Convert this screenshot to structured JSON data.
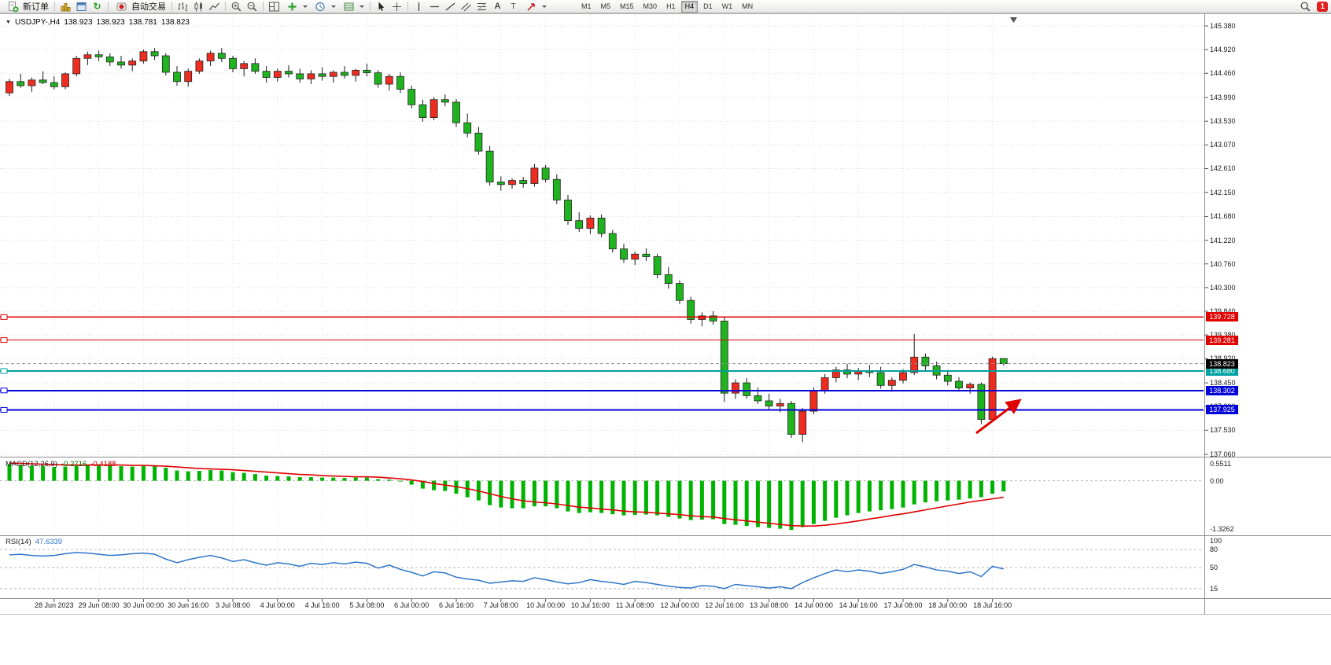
{
  "toolbar": {
    "new_order": "新订单",
    "autotrading": "自动交易",
    "timeframes": [
      "M1",
      "M5",
      "M15",
      "M30",
      "H1",
      "H4",
      "D1",
      "W1",
      "MN"
    ],
    "selected_timeframe": "H4",
    "notification_count": "1"
  },
  "title": {
    "symbol": "USDJPY-,H4",
    "open": "138.923",
    "high": "138.923",
    "low": "138.781",
    "close": "138.823"
  },
  "price_scale": [
    "145.380",
    "144.920",
    "144.460",
    "143.990",
    "143.530",
    "143.070",
    "142.610",
    "142.150",
    "141.680",
    "141.220",
    "140.760",
    "140.300",
    "139.840",
    "139.380",
    "138.920",
    "138.450",
    "137.990",
    "137.530",
    "137.060"
  ],
  "hlines": [
    {
      "label": "139.728",
      "price": 139.728,
      "color": "#e00000",
      "width": 1.2
    },
    {
      "label": "139.281",
      "price": 139.281,
      "color": "#e00000",
      "width": 1.2
    },
    {
      "label": "138.680",
      "price": 138.68,
      "color": "#00a0a0",
      "width": 2
    },
    {
      "label": "138.302",
      "price": 138.302,
      "color": "#0000d8",
      "width": 2
    },
    {
      "label": "137.925",
      "price": 137.925,
      "color": "#0000d8",
      "width": 2
    }
  ],
  "current_price": {
    "label": "138.823",
    "price": 138.823,
    "box_color": "#000000"
  },
  "macd_panel": {
    "name": "MACD(12,26,9)",
    "value": "-0.2716",
    "signal_value": "-0.4188",
    "scale": [
      "0.5511",
      "0.00",
      "-1.3262"
    ]
  },
  "rsi_panel": {
    "name": "RSI(14)",
    "value": "47.6339",
    "scale": [
      "100",
      "80",
      "50",
      "15"
    ],
    "levels": [
      80,
      50,
      15
    ]
  },
  "dates": [
    "28 Jun 2023",
    "29 Jun 08:00",
    "30 Jun 00:00",
    "30 Jun 16:00",
    "3 Jul 08:00",
    "4 Jul 00:00",
    "4 Jul 16:00",
    "5 Jul 08:00",
    "6 Jul 00:00",
    "6 Jul 16:00",
    "7 Jul 08:00",
    "10 Jul 00:00",
    "10 Jul 16:00",
    "11 Jul 08:00",
    "12 Jul 00:00",
    "12 Jul 16:00",
    "13 Jul 08:00",
    "14 Jul 00:00",
    "14 Jul 16:00",
    "17 Jul 08:00",
    "18 Jul 00:00",
    "18 Jul 16:00"
  ],
  "colors": {
    "up": "#ee2d20",
    "up_border": "#222222",
    "down": "#1fb41f",
    "down_border": "#222222",
    "wick": "#1a1a1a",
    "macd": "#00b300",
    "signal": "#e00000",
    "rsi": "#2e75c8",
    "grid": "#d8d8d8",
    "arrow": "#e00000"
  },
  "chart_data": {
    "type": "candlestick",
    "title": "USDJPY-,H4",
    "timeframe": "H4",
    "ylim": [
      137.06,
      145.38
    ],
    "candles": [
      [
        144.08,
        144.35,
        144.02,
        144.3
      ],
      [
        144.3,
        144.45,
        144.18,
        144.22
      ],
      [
        144.22,
        144.38,
        144.1,
        144.33
      ],
      [
        144.33,
        144.5,
        144.25,
        144.28
      ],
      [
        144.28,
        144.4,
        144.15,
        144.2
      ],
      [
        144.2,
        144.48,
        144.15,
        144.45
      ],
      [
        144.45,
        144.8,
        144.4,
        144.75
      ],
      [
        144.75,
        144.88,
        144.62,
        144.82
      ],
      [
        144.82,
        144.9,
        144.7,
        144.78
      ],
      [
        144.78,
        144.85,
        144.6,
        144.68
      ],
      [
        144.68,
        144.8,
        144.55,
        144.62
      ],
      [
        144.62,
        144.75,
        144.5,
        144.7
      ],
      [
        144.7,
        144.92,
        144.65,
        144.88
      ],
      [
        144.88,
        144.95,
        144.72,
        144.8
      ],
      [
        144.8,
        144.85,
        144.42,
        144.48
      ],
      [
        144.48,
        144.6,
        144.22,
        144.3
      ],
      [
        144.3,
        144.55,
        144.2,
        144.5
      ],
      [
        144.5,
        144.75,
        144.45,
        144.7
      ],
      [
        144.7,
        144.9,
        144.6,
        144.85
      ],
      [
        144.85,
        144.95,
        144.68,
        144.75
      ],
      [
        144.75,
        144.8,
        144.48,
        144.55
      ],
      [
        144.55,
        144.7,
        144.4,
        144.65
      ],
      [
        144.65,
        144.75,
        144.45,
        144.5
      ],
      [
        144.5,
        144.6,
        144.28,
        144.38
      ],
      [
        144.38,
        144.55,
        144.3,
        144.5
      ],
      [
        144.5,
        144.62,
        144.38,
        144.45
      ],
      [
        144.45,
        144.55,
        144.28,
        144.35
      ],
      [
        144.35,
        144.52,
        144.25,
        144.45
      ],
      [
        144.45,
        144.58,
        144.32,
        144.4
      ],
      [
        144.4,
        144.52,
        144.28,
        144.48
      ],
      [
        144.48,
        144.6,
        144.36,
        144.42
      ],
      [
        144.42,
        144.55,
        144.3,
        144.52
      ],
      [
        144.52,
        144.65,
        144.4,
        144.47
      ],
      [
        144.47,
        144.52,
        144.18,
        144.25
      ],
      [
        144.25,
        144.45,
        144.12,
        144.4
      ],
      [
        144.4,
        144.48,
        144.08,
        144.15
      ],
      [
        144.15,
        144.22,
        143.78,
        143.85
      ],
      [
        143.85,
        143.95,
        143.52,
        143.6
      ],
      [
        143.6,
        144.0,
        143.55,
        143.95
      ],
      [
        143.95,
        144.05,
        143.82,
        143.9
      ],
      [
        143.9,
        143.96,
        143.42,
        143.5
      ],
      [
        143.5,
        143.68,
        143.22,
        143.3
      ],
      [
        143.3,
        143.42,
        142.88,
        142.95
      ],
      [
        142.95,
        143.05,
        142.28,
        142.35
      ],
      [
        142.35,
        142.46,
        142.18,
        142.3
      ],
      [
        142.3,
        142.42,
        142.22,
        142.38
      ],
      [
        142.38,
        142.45,
        142.24,
        142.32
      ],
      [
        142.32,
        142.7,
        142.26,
        142.62
      ],
      [
        142.62,
        142.68,
        142.34,
        142.4
      ],
      [
        142.4,
        142.5,
        141.92,
        142.0
      ],
      [
        142.0,
        142.1,
        141.52,
        141.6
      ],
      [
        141.6,
        141.76,
        141.38,
        141.45
      ],
      [
        141.45,
        141.7,
        141.34,
        141.65
      ],
      [
        141.65,
        141.72,
        141.28,
        141.35
      ],
      [
        141.35,
        141.42,
        140.98,
        141.05
      ],
      [
        141.05,
        141.15,
        140.78,
        140.85
      ],
      [
        140.85,
        141.0,
        140.74,
        140.95
      ],
      [
        140.95,
        141.06,
        140.82,
        140.9
      ],
      [
        140.9,
        140.96,
        140.48,
        140.55
      ],
      [
        140.55,
        140.7,
        140.28,
        140.38
      ],
      [
        140.38,
        140.44,
        139.98,
        140.05
      ],
      [
        140.05,
        140.12,
        139.6,
        139.68
      ],
      [
        139.68,
        139.82,
        139.55,
        139.75
      ],
      [
        139.75,
        139.84,
        139.58,
        139.65
      ],
      [
        139.65,
        139.72,
        138.08,
        138.25
      ],
      [
        138.25,
        138.52,
        138.14,
        138.45
      ],
      [
        138.45,
        138.54,
        138.14,
        138.2
      ],
      [
        138.2,
        138.36,
        138.04,
        138.1
      ],
      [
        138.1,
        138.24,
        137.94,
        138.0
      ],
      [
        138.0,
        138.14,
        137.88,
        138.05
      ],
      [
        138.05,
        138.1,
        137.38,
        137.45
      ],
      [
        137.45,
        137.96,
        137.3,
        137.9
      ],
      [
        137.9,
        138.36,
        137.84,
        138.3
      ],
      [
        138.3,
        138.62,
        138.24,
        138.55
      ],
      [
        138.55,
        138.76,
        138.46,
        138.7
      ],
      [
        138.7,
        138.82,
        138.54,
        138.62
      ],
      [
        138.62,
        138.74,
        138.5,
        138.68
      ],
      [
        138.68,
        138.8,
        138.56,
        138.65
      ],
      [
        138.65,
        138.76,
        138.34,
        138.4
      ],
      [
        138.4,
        138.56,
        138.28,
        138.5
      ],
      [
        138.5,
        138.72,
        138.44,
        138.65
      ],
      [
        138.65,
        139.4,
        138.6,
        138.95
      ],
      [
        138.95,
        139.02,
        138.68,
        138.78
      ],
      [
        138.78,
        138.86,
        138.52,
        138.6
      ],
      [
        138.6,
        138.7,
        138.4,
        138.48
      ],
      [
        138.48,
        138.56,
        138.28,
        138.35
      ],
      [
        138.35,
        138.46,
        138.24,
        138.42
      ],
      [
        138.42,
        138.46,
        137.65,
        137.74
      ],
      [
        137.74,
        138.96,
        137.7,
        138.92
      ],
      [
        138.923,
        138.923,
        138.781,
        138.823
      ]
    ],
    "macd_hist": [
      0.42,
      0.4,
      0.38,
      0.37,
      0.35,
      0.36,
      0.38,
      0.4,
      0.41,
      0.39,
      0.37,
      0.36,
      0.37,
      0.38,
      0.33,
      0.26,
      0.24,
      0.25,
      0.27,
      0.26,
      0.22,
      0.2,
      0.17,
      0.13,
      0.12,
      0.11,
      0.09,
      0.09,
      0.08,
      0.08,
      0.07,
      0.08,
      0.08,
      0.04,
      0.03,
      -0.02,
      -0.1,
      -0.2,
      -0.24,
      -0.26,
      -0.33,
      -0.42,
      -0.5,
      -0.62,
      -0.68,
      -0.7,
      -0.7,
      -0.65,
      -0.65,
      -0.7,
      -0.78,
      -0.82,
      -0.8,
      -0.82,
      -0.85,
      -0.88,
      -0.87,
      -0.86,
      -0.88,
      -0.92,
      -0.96,
      -1.0,
      -0.99,
      -0.98,
      -1.1,
      -1.12,
      -1.15,
      -1.18,
      -1.2,
      -1.22,
      -1.25,
      -1.18,
      -1.1,
      -1.02,
      -0.94,
      -0.88,
      -0.82,
      -0.78,
      -0.75,
      -0.72,
      -0.68,
      -0.6,
      -0.55,
      -0.52,
      -0.5,
      -0.48,
      -0.45,
      -0.42,
      -0.33,
      -0.2716
    ],
    "macd_signal": [
      0.45,
      0.44,
      0.43,
      0.42,
      0.41,
      0.4,
      0.4,
      0.4,
      0.4,
      0.4,
      0.4,
      0.39,
      0.39,
      0.38,
      0.37,
      0.35,
      0.33,
      0.31,
      0.3,
      0.29,
      0.28,
      0.26,
      0.24,
      0.22,
      0.2,
      0.18,
      0.16,
      0.15,
      0.13,
      0.12,
      0.11,
      0.1,
      0.1,
      0.09,
      0.07,
      0.05,
      0.02,
      -0.02,
      -0.07,
      -0.11,
      -0.15,
      -0.2,
      -0.26,
      -0.33,
      -0.4,
      -0.46,
      -0.51,
      -0.54,
      -0.56,
      -0.59,
      -0.63,
      -0.67,
      -0.69,
      -0.72,
      -0.74,
      -0.77,
      -0.79,
      -0.8,
      -0.82,
      -0.84,
      -0.86,
      -0.89,
      -0.91,
      -0.92,
      -0.96,
      -0.99,
      -1.02,
      -1.05,
      -1.08,
      -1.11,
      -1.14,
      -1.15,
      -1.15,
      -1.13,
      -1.1,
      -1.06,
      -1.02,
      -0.97,
      -0.93,
      -0.88,
      -0.84,
      -0.79,
      -0.74,
      -0.69,
      -0.64,
      -0.59,
      -0.54,
      -0.5,
      -0.46,
      -0.4188
    ],
    "rsi": [
      71,
      72,
      70,
      69,
      70,
      73,
      75,
      74,
      72,
      70,
      71,
      73,
      74,
      72,
      64,
      58,
      63,
      67,
      70,
      66,
      60,
      63,
      58,
      54,
      58,
      56,
      52,
      57,
      55,
      58,
      56,
      59,
      57,
      49,
      54,
      47,
      42,
      36,
      43,
      41,
      34,
      31,
      29,
      24,
      26,
      28,
      27,
      33,
      30,
      26,
      23,
      25,
      30,
      27,
      25,
      22,
      27,
      25,
      22,
      19,
      17,
      16,
      20,
      19,
      15,
      22,
      20,
      18,
      16,
      18,
      15,
      25,
      33,
      40,
      46,
      43,
      46,
      44,
      40,
      43,
      47,
      55,
      51,
      46,
      44,
      40,
      43,
      35,
      52,
      47.6
    ]
  }
}
